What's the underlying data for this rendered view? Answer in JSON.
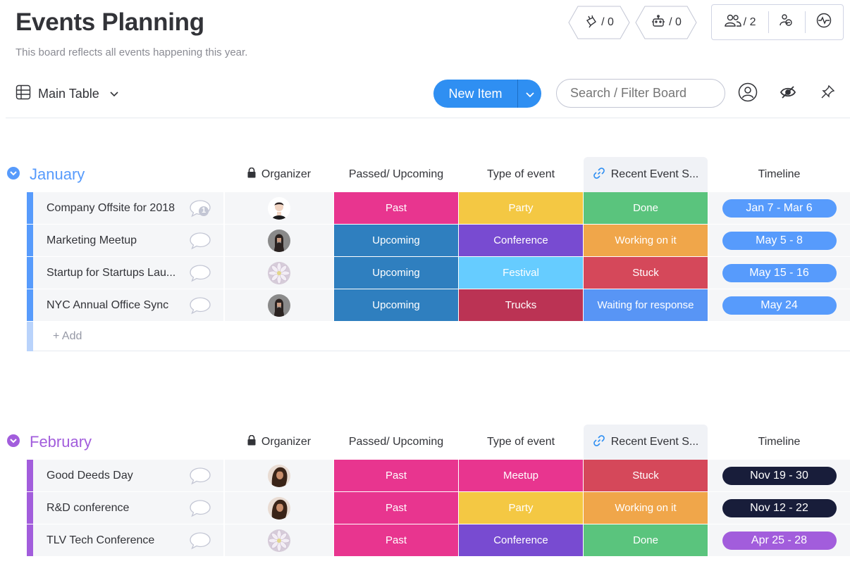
{
  "board": {
    "title": "Events Planning",
    "description": "This board reflects all events happening this year."
  },
  "header": {
    "integrations_count": "/ 0",
    "automations_count": "/ 0",
    "members_count": "/ 2"
  },
  "toolbar": {
    "view_label": "Main Table",
    "new_item_label": "New Item",
    "search_placeholder": "Search / Filter Board"
  },
  "columns": {
    "organizer": "Organizer",
    "passed": "Passed/ Upcoming",
    "type": "Type of event",
    "recent": "Recent Event S...",
    "timeline": "Timeline"
  },
  "colors": {
    "january": "#579bfc",
    "february": "#a25ddc",
    "past": "#e8358f",
    "upcoming": "#2f7fbf",
    "party": "#f4c843",
    "conference": "#784bd1",
    "festival": "#66ccff",
    "trucks": "#bb3354",
    "meetup": "#e8358f",
    "done": "#5ac47d",
    "working": "#f0a64a",
    "stuck": "#d5485a",
    "waiting": "#5895f5",
    "timeline_blue": "#579bfc",
    "timeline_navy": "#181d3a",
    "timeline_purple": "#a25ddc"
  },
  "groups": [
    {
      "name": "January",
      "rows": [
        {
          "name": "Company Offsite for 2018",
          "updates": "1",
          "passed": "Past",
          "type": "Party",
          "recent": "Done",
          "timeline": "Jan 7 - Mar 6"
        },
        {
          "name": "Marketing Meetup",
          "passed": "Upcoming",
          "type": "Conference",
          "recent": "Working on it",
          "timeline": "May 5 - 8"
        },
        {
          "name": "Startup for Startups Lau...",
          "passed": "Upcoming",
          "type": "Festival",
          "recent": "Stuck",
          "timeline": "May 15 - 16"
        },
        {
          "name": "NYC Annual Office Sync",
          "passed": "Upcoming",
          "type": "Trucks",
          "recent": "Waiting for response",
          "timeline": "May 24"
        }
      ],
      "add_label": "+ Add"
    },
    {
      "name": "February",
      "rows": [
        {
          "name": "Good Deeds Day",
          "passed": "Past",
          "type": "Meetup",
          "recent": "Stuck",
          "timeline": "Nov 19 - 30"
        },
        {
          "name": "R&D conference",
          "passed": "Past",
          "type": "Party",
          "recent": "Working on it",
          "timeline": "Nov 12 - 22"
        },
        {
          "name": "TLV Tech Conference",
          "passed": "Past",
          "type": "Conference",
          "recent": "Done",
          "timeline": "Apr 25 - 28"
        }
      ]
    }
  ]
}
